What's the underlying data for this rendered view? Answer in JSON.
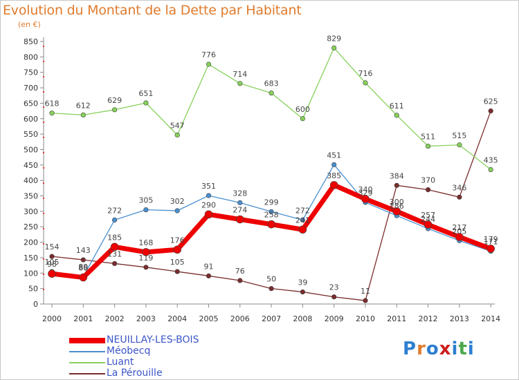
{
  "header": {
    "title": "Evolution du Montant de la Dette par Habitant",
    "unit": "(en €)"
  },
  "logo": {
    "text": "Proxiti",
    "colors": [
      "#2e7fd0",
      "#e07b2d",
      "#2e7fd0",
      "#cc1d1d",
      "#2e7fd0",
      "#4aa84a",
      "#2e7fd0"
    ]
  },
  "chart_data": {
    "type": "line",
    "title": "Evolution du Montant de la Dette par Habitant",
    "ylabel": "(en €)",
    "xlabel": "",
    "x": [
      "2000",
      "2001",
      "2002",
      "2003",
      "2004",
      "2005",
      "2006",
      "2007",
      "2008",
      "2009",
      "2010",
      "2011",
      "2012",
      "2013",
      "2014"
    ],
    "ylim": [
      0,
      850
    ],
    "yticks": [
      0,
      50,
      100,
      150,
      200,
      250,
      300,
      350,
      400,
      450,
      500,
      550,
      600,
      650,
      700,
      750,
      800,
      850
    ],
    "grid": false,
    "legend": "bottom-left",
    "series": [
      {
        "name": "La Pérouille",
        "color": "#7a2c2c",
        "values": [
          154,
          143,
          131,
          119,
          105,
          91,
          76,
          50,
          39,
          23,
          11,
          384,
          370,
          346,
          625
        ],
        "labels": [
          "154",
          "143",
          "131",
          "119",
          "105",
          "91",
          "76",
          "50",
          "39",
          "23",
          "11",
          "384",
          "370",
          "346",
          "625"
        ]
      },
      {
        "name": "Luant",
        "color": "#86d05a",
        "values": [
          618,
          612,
          629,
          651,
          547,
          776,
          714,
          683,
          600,
          829,
          716,
          611,
          511,
          515,
          435
        ],
        "labels": [
          "618",
          "612",
          "629",
          "651",
          "547",
          "776",
          "714",
          "683",
          "600",
          "829",
          "716",
          "611",
          "511",
          "515",
          "435"
        ]
      },
      {
        "name": "Méobecq",
        "color": "#4a8fd0",
        "values": [
          105,
          89,
          272,
          305,
          302,
          351,
          328,
          299,
          272,
          451,
          329,
          286,
          244,
          205,
          171
        ],
        "labels": [
          "105",
          "89",
          "272",
          "305",
          "302",
          "351",
          "328",
          "299",
          "272",
          "451",
          "329",
          "286",
          "244",
          "205",
          "171"
        ]
      },
      {
        "name": "NEUILLAY-LES-BOIS",
        "color": "#ee0000",
        "values": [
          98,
          86,
          185,
          168,
          176,
          290,
          274,
          258,
          241,
          385,
          340,
          300,
          257,
          217,
          179
        ],
        "labels": [
          "98",
          "86",
          "185",
          "168",
          "176",
          "290",
          "274",
          "258",
          "241",
          "385",
          "340",
          "300",
          "257",
          "217",
          "179"
        ]
      }
    ],
    "legend_order": [
      "NEUILLAY-LES-BOIS",
      "Méobecq",
      "Luant",
      "La Pérouille"
    ]
  }
}
